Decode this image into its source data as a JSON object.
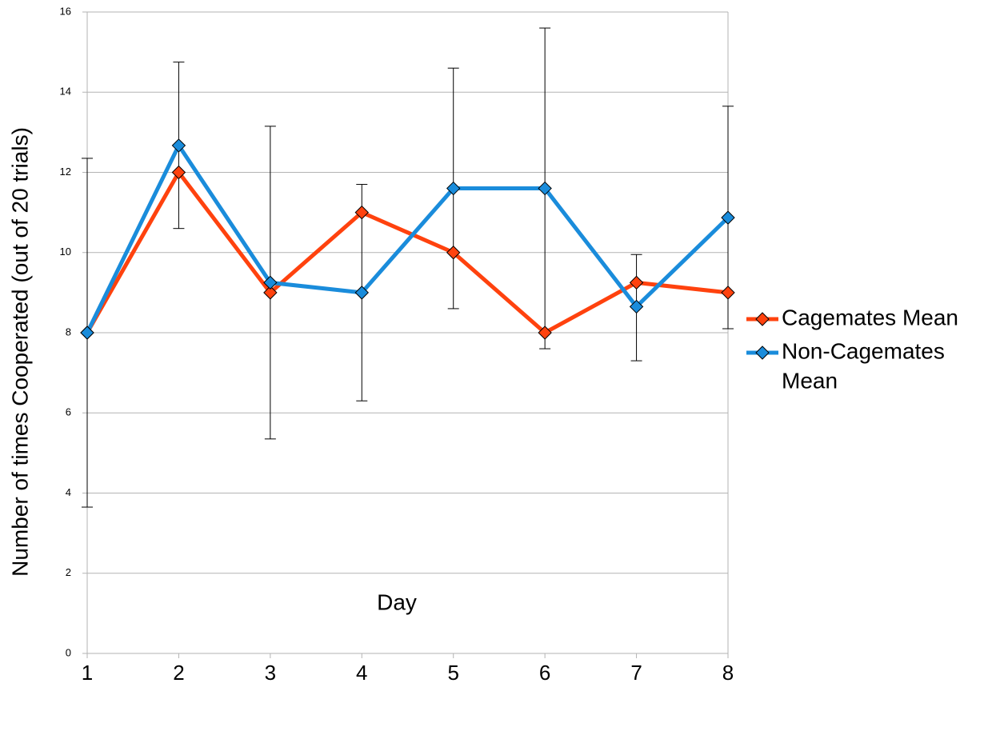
{
  "chart_data": {
    "type": "line",
    "title": "",
    "xlabel": "Day",
    "ylabel": "Number of times Cooperated (out of 20 trials)",
    "x": [
      1,
      2,
      3,
      4,
      5,
      6,
      7,
      8
    ],
    "x_tick_labels": [
      "1",
      "2",
      "3",
      "4",
      "5",
      "6",
      "7",
      "8"
    ],
    "ylim": [
      0,
      16
    ],
    "y_ticks": [
      0,
      2,
      4,
      6,
      8,
      10,
      12,
      14,
      16
    ],
    "y_tick_labels": [
      "0",
      "2",
      "4",
      "6",
      "8",
      "10",
      "12",
      "14",
      "16"
    ],
    "grid": "horizontal",
    "legend_position": "right",
    "error_bars": [
      {
        "x": 1,
        "low": 3.65,
        "high": 12.35
      },
      {
        "x": 2,
        "low": 10.6,
        "high": 14.75
      },
      {
        "x": 3,
        "low": 5.35,
        "high": 13.15
      },
      {
        "x": 4,
        "low": 6.3,
        "high": 11.7
      },
      {
        "x": 5,
        "low": 8.6,
        "high": 14.6
      },
      {
        "x": 6,
        "low": 7.6,
        "high": 15.6
      },
      {
        "x": 7,
        "low": 7.3,
        "high": 9.95
      },
      {
        "x": 8,
        "low": 8.1,
        "high": 13.65
      }
    ],
    "series": [
      {
        "name": "Cagemates Mean",
        "legend_lines": [
          "Cagemates Mean"
        ],
        "color": "#ff420e",
        "marker": "diamond",
        "values": [
          8,
          12,
          9,
          11,
          10,
          8,
          9.25,
          9
        ]
      },
      {
        "name": "Non-Cagemates Mean",
        "legend_lines": [
          "Non-Cagemates",
          "Mean"
        ],
        "color": "#1a8cdb",
        "marker": "diamond",
        "values": [
          8,
          12.67,
          9.25,
          9,
          11.6,
          11.6,
          8.65,
          10.87
        ]
      }
    ]
  }
}
